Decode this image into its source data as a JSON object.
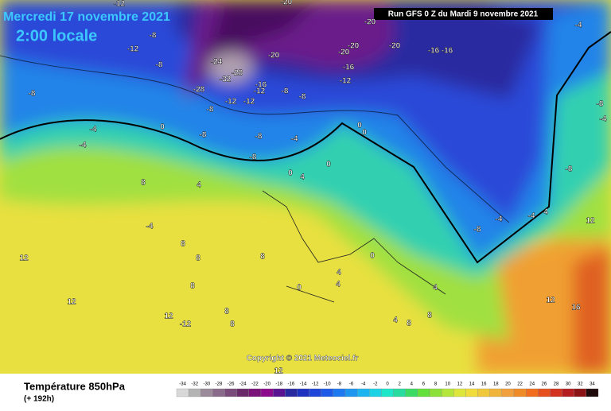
{
  "header": {
    "date": "Mercredi 17 novembre 2021",
    "time": "2:00 locale",
    "run": "Run GFS 0 Z du Mardi 9 novembre 2021"
  },
  "copyright": "Copyright © 2021 Meteociel.fr",
  "footer": {
    "title": "Température 850hPa",
    "lead": "(+ 192h)"
  },
  "legend": {
    "values": [
      -34,
      -32,
      -30,
      -28,
      -26,
      -24,
      -22,
      -20,
      -18,
      -16,
      -14,
      -12,
      -10,
      -8,
      -6,
      -4,
      -2,
      0,
      2,
      4,
      6,
      8,
      10,
      12,
      14,
      16,
      18,
      20,
      22,
      24,
      26,
      28,
      30,
      32,
      34
    ],
    "colors": [
      "#d8d8d8",
      "#b4b4b4",
      "#9a8a9a",
      "#8a6a8a",
      "#7a4a7a",
      "#6a2a6a",
      "#7a127a",
      "#8c0a8c",
      "#5a1490",
      "#2a2aa0",
      "#1e32c0",
      "#1e46d8",
      "#1e5ae8",
      "#1e78f0",
      "#1e96f0",
      "#1eb4f0",
      "#1ed2e6",
      "#1ee6c8",
      "#28dca0",
      "#3cdc64",
      "#64e03c",
      "#8ce03c",
      "#b4e63c",
      "#dce63c",
      "#f0dc3c",
      "#f0c83c",
      "#f0b43c",
      "#f0a03c",
      "#f08c28",
      "#f06e1e",
      "#e6501e",
      "#d2321e",
      "#b41e1e",
      "#8c1414",
      "#1e0a0a"
    ]
  },
  "map_labels": [
    -12,
    -12,
    -8,
    -8,
    -8,
    -4,
    -4,
    0,
    -24,
    -28,
    -32,
    -28,
    -20,
    -16,
    -12,
    -12,
    -12,
    -8,
    -8,
    -8,
    -8,
    -8,
    -8,
    -4,
    -20,
    -20,
    -20,
    -16,
    -16,
    -16,
    -12,
    -20,
    -20,
    -4,
    -8,
    -4,
    -8,
    0,
    0,
    0,
    4,
    0,
    4,
    8,
    -4,
    8,
    8,
    8,
    12,
    12,
    12,
    -12,
    8,
    8,
    8,
    -8,
    -4,
    -4,
    4,
    12,
    12,
    16,
    4,
    4,
    4,
    8,
    8,
    4,
    0,
    0,
    12
  ]
}
